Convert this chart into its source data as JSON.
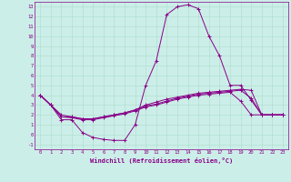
{
  "title": "",
  "xlabel": "Windchill (Refroidissement éolien,°C)",
  "ylabel": "",
  "bg_color": "#cceee8",
  "line_color": "#880088",
  "grid_color": "#aaddcc",
  "xlim": [
    -0.5,
    23.5
  ],
  "ylim": [
    -1.5,
    13.5
  ],
  "xticks": [
    0,
    1,
    2,
    3,
    4,
    5,
    6,
    7,
    8,
    9,
    10,
    11,
    12,
    13,
    14,
    15,
    16,
    17,
    18,
    19,
    20,
    21,
    22,
    23
  ],
  "yticks": [
    -1,
    0,
    1,
    2,
    3,
    4,
    5,
    6,
    7,
    8,
    9,
    10,
    11,
    12,
    13
  ],
  "series": [
    [
      4.0,
      3.0,
      1.5,
      1.5,
      0.2,
      -0.3,
      -0.5,
      -0.6,
      -0.6,
      1.0,
      5.0,
      7.5,
      12.2,
      13.0,
      13.2,
      12.8,
      10.0,
      8.0,
      5.0,
      5.0,
      3.5,
      2.0,
      2.0,
      2.0
    ],
    [
      4.0,
      3.0,
      2.0,
      1.8,
      1.6,
      1.6,
      1.8,
      2.0,
      2.2,
      2.5,
      3.0,
      3.3,
      3.6,
      3.8,
      4.0,
      4.2,
      4.3,
      4.4,
      4.5,
      4.6,
      4.5,
      2.0,
      2.0,
      2.0
    ],
    [
      4.0,
      3.0,
      1.8,
      1.8,
      1.6,
      1.6,
      1.8,
      2.0,
      2.2,
      2.5,
      2.9,
      3.1,
      3.4,
      3.7,
      3.9,
      4.1,
      4.2,
      4.3,
      4.4,
      4.5,
      3.7,
      2.0,
      2.0,
      2.0
    ],
    [
      4.0,
      3.0,
      1.8,
      1.7,
      1.5,
      1.5,
      1.7,
      1.9,
      2.1,
      2.4,
      2.8,
      3.0,
      3.3,
      3.6,
      3.8,
      4.0,
      4.1,
      4.2,
      4.3,
      3.4,
      2.0,
      2.0,
      2.0,
      2.0
    ]
  ]
}
